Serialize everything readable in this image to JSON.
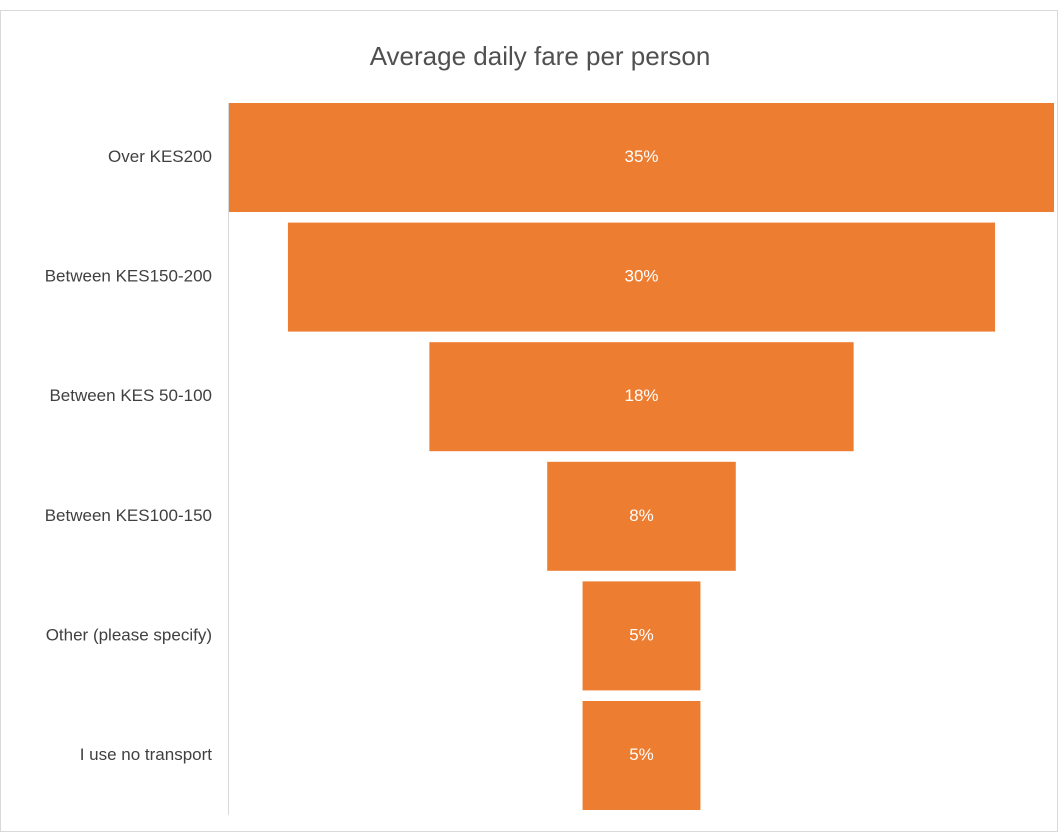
{
  "chart_data": {
    "type": "funnel",
    "title": "Average daily fare per person",
    "categories": [
      "Over KES200",
      "Between KES150-200",
      "Between KES 50-100",
      "Between KES100-150",
      "Other (please specify)",
      "I use no transport"
    ],
    "values": [
      35,
      30,
      18,
      8,
      5,
      5
    ],
    "value_labels": [
      "35%",
      "30%",
      "18%",
      "8%",
      "5%",
      "5%"
    ],
    "color": "#ed7d31"
  }
}
